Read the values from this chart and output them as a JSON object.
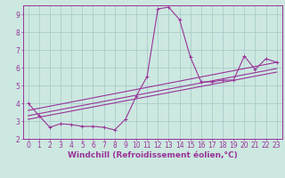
{
  "background_color": "#cce8e0",
  "grid_color": "#aacccc",
  "line_color": "#993399",
  "marker_color": "#993399",
  "xlabel": "Windchill (Refroidissement éolien,°C)",
  "xlim": [
    -0.5,
    23.5
  ],
  "ylim": [
    2,
    9.5
  ],
  "xticks": [
    0,
    1,
    2,
    3,
    4,
    5,
    6,
    7,
    8,
    9,
    10,
    11,
    12,
    13,
    14,
    15,
    16,
    17,
    18,
    19,
    20,
    21,
    22,
    23
  ],
  "yticks": [
    2,
    3,
    4,
    5,
    6,
    7,
    8,
    9
  ],
  "curve_x": [
    0,
    1,
    2,
    3,
    4,
    5,
    6,
    7,
    8,
    9,
    10,
    11,
    12,
    13,
    14,
    15,
    16,
    17,
    18,
    19,
    20,
    21,
    22,
    23
  ],
  "curve_y": [
    4.0,
    3.3,
    2.65,
    2.85,
    2.8,
    2.7,
    2.7,
    2.65,
    2.5,
    3.1,
    4.4,
    5.5,
    9.3,
    9.4,
    8.7,
    6.6,
    5.2,
    5.2,
    5.3,
    5.3,
    6.65,
    5.9,
    6.5,
    6.3
  ],
  "line1_x": [
    0,
    23
  ],
  "line1_y": [
    3.6,
    6.3
  ],
  "line2_x": [
    0,
    23
  ],
  "line2_y": [
    3.3,
    5.95
  ],
  "line3_x": [
    0,
    23
  ],
  "line3_y": [
    3.1,
    5.75
  ],
  "xlabel_fontsize": 6.5,
  "tick_fontsize": 5.5,
  "tick_color": "#993399",
  "xlabel_color": "#993399",
  "spine_color": "#993399"
}
